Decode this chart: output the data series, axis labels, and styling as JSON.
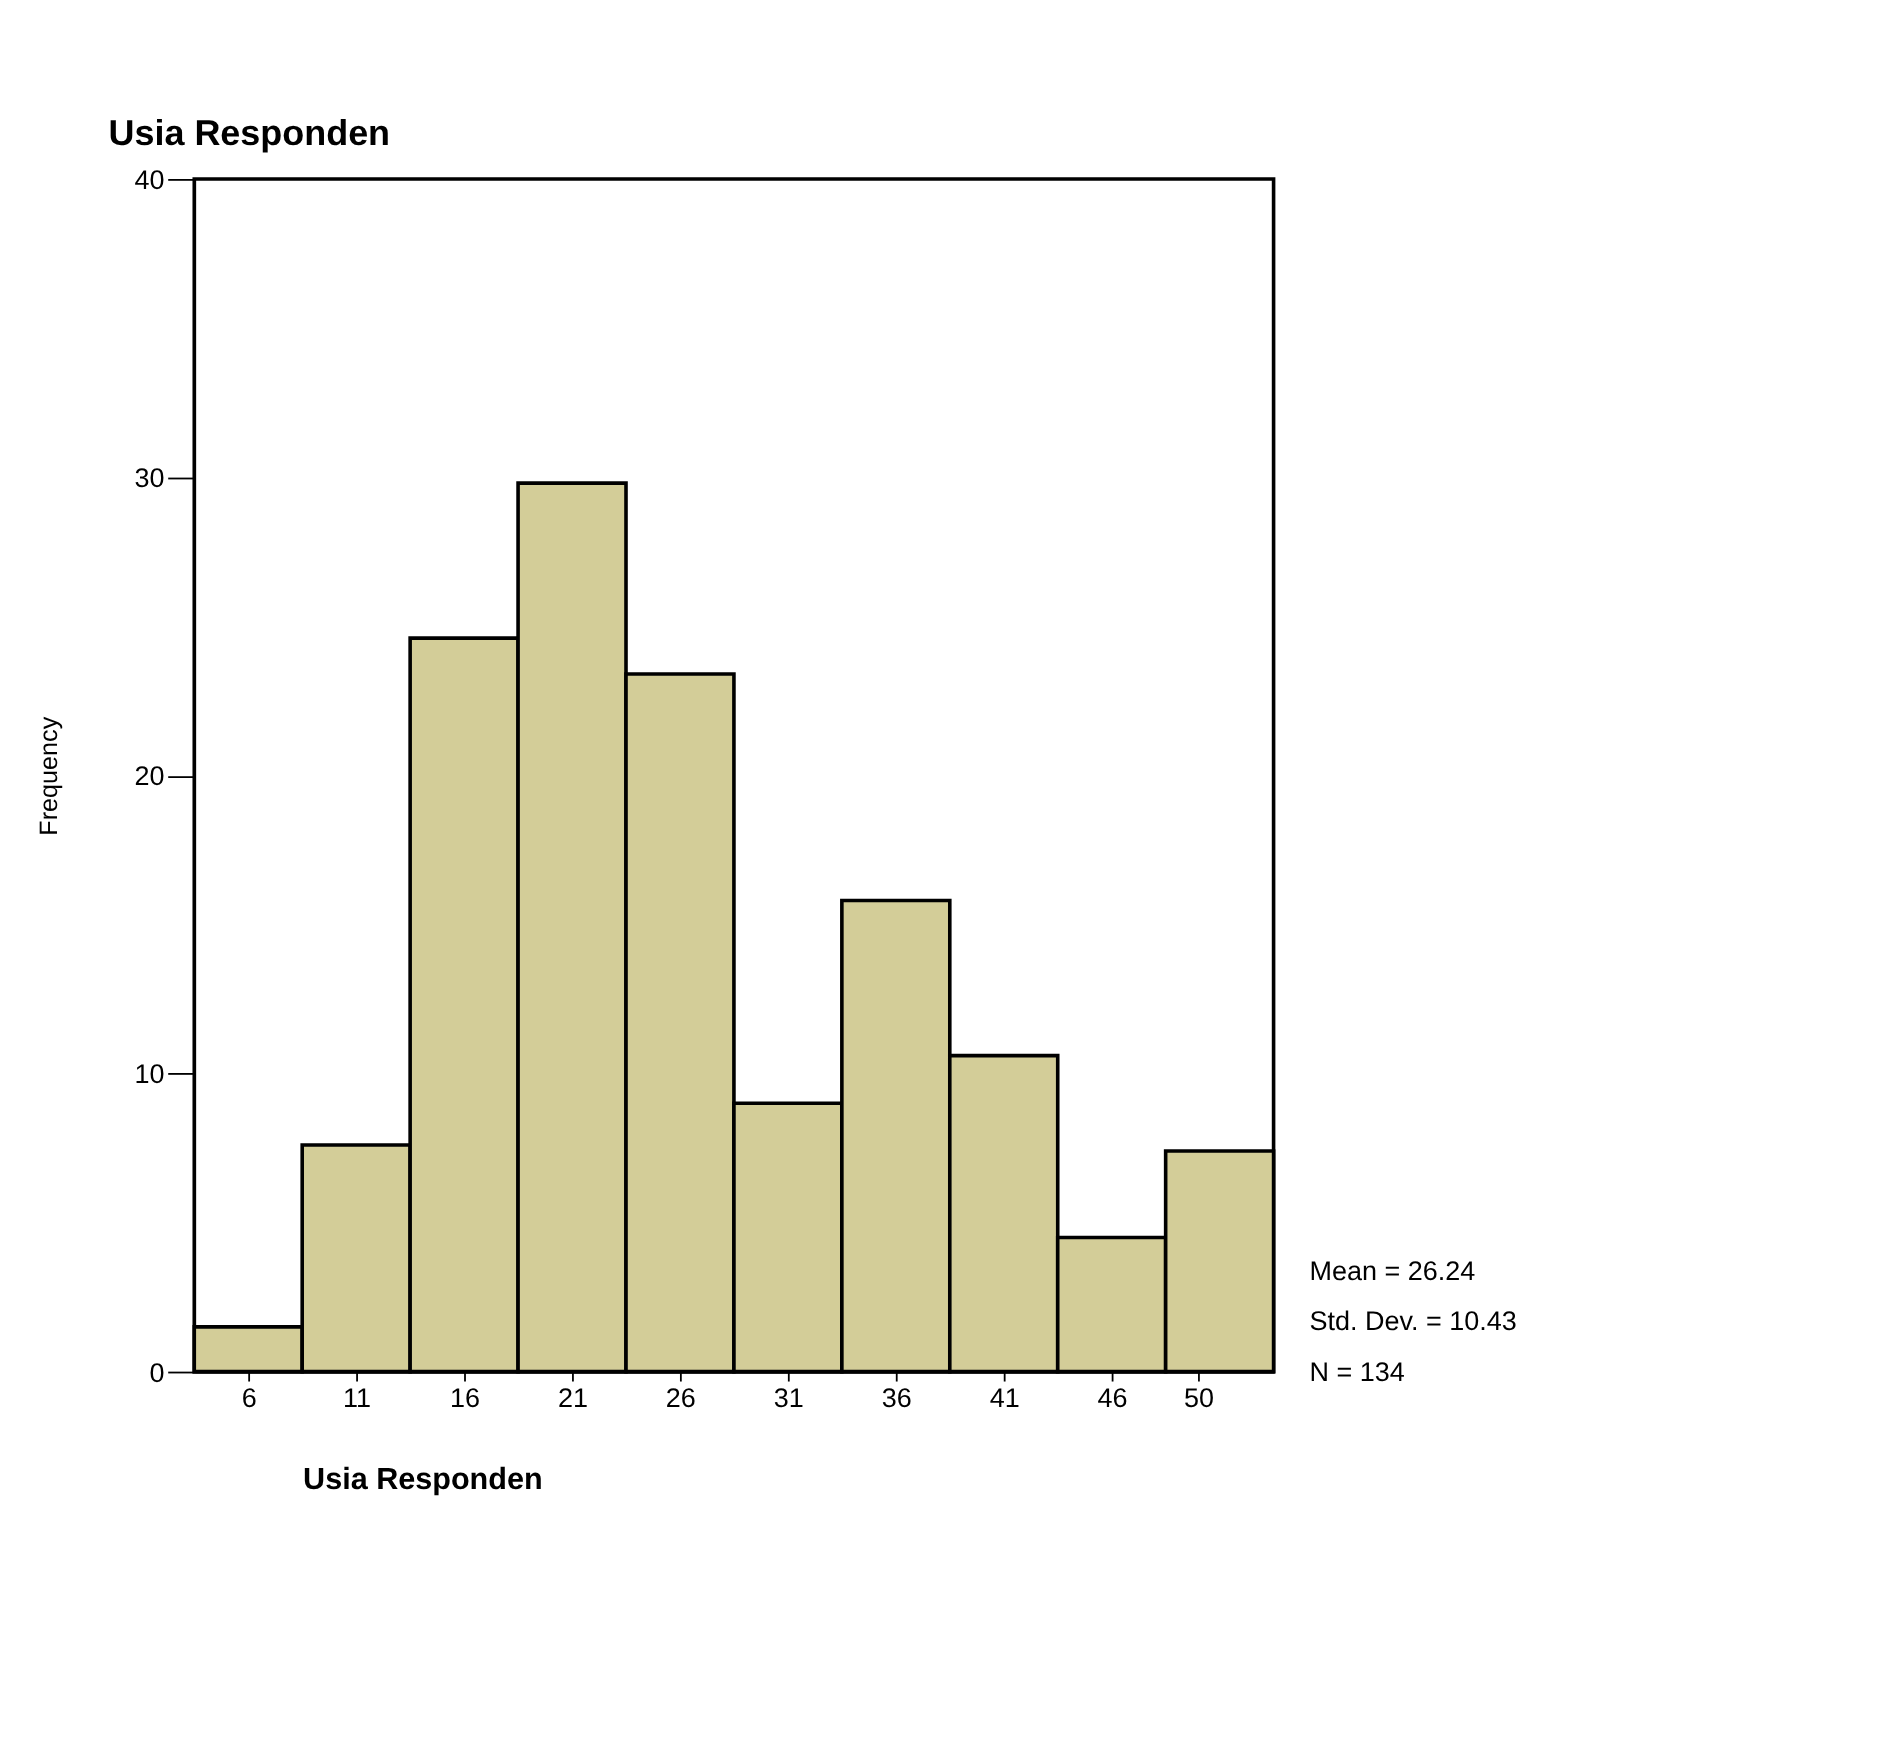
{
  "chart_data": {
    "type": "histogram",
    "title": "Usia Responden",
    "xlabel": "Usia Responden",
    "ylabel": "Frequency",
    "bins": [
      3.5,
      8.5,
      13.5,
      18.5,
      23.5,
      28.5,
      33.5,
      38.5,
      43.5,
      48.5,
      53.5
    ],
    "values": [
      1.5,
      7.6,
      24.6,
      29.8,
      23.4,
      9,
      15.8,
      10.6,
      4.5,
      7.4
    ],
    "color": "#d3cd98",
    "xlim": [
      3.5,
      53.5
    ],
    "xticks": [
      6,
      11,
      16,
      21,
      26,
      31,
      36,
      41,
      46,
      50
    ],
    "ylim": [
      0,
      40
    ],
    "yticks": [
      0,
      10,
      20,
      30,
      40
    ],
    "grid": false,
    "annotations": [
      "Mean = 26.24",
      "Std. Dev. = 10.43",
      "N = 134"
    ]
  }
}
